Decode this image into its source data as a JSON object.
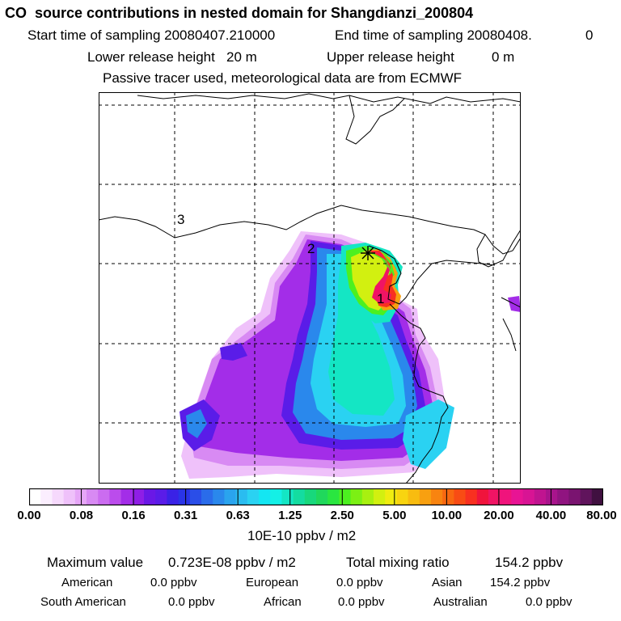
{
  "title": "CO  source contributions in nested domain for Shangdianzi_200804",
  "header": {
    "start_label": "Start time of sampling 20080407.210000",
    "end_label": "End time of sampling 20080408.",
    "end_value": "0",
    "lower_label": "Lower release height   20 m",
    "upper_label": "Upper release height",
    "upper_value": "0 m",
    "note": "Passive tracer used, meteorological data are from ECMWF"
  },
  "map": {
    "region_labels": [
      "1",
      "2",
      "3"
    ],
    "grid": true,
    "station_marker": "asterisk"
  },
  "chart_data": {
    "type": "heatmap",
    "title": "CO  source contributions in nested domain for Shangdianzi_200804",
    "colorbar_label": "10E-10 ppbv / m2",
    "colorbar_ticks": [
      "0.00",
      "0.08",
      "0.16",
      "0.31",
      "0.63",
      "1.25",
      "2.50",
      "5.00",
      "10.00",
      "20.00",
      "40.00",
      "80.00"
    ],
    "colors": [
      "#ffffff",
      "#fbeefe",
      "#f6d9fc",
      "#efc1fa",
      "#e6a6f7",
      "#d88af3",
      "#cb6cf0",
      "#bb4cec",
      "#a32de8",
      "#8f1ee6",
      "#6a18e6",
      "#5a1ce8",
      "#3a22e6",
      "#2a34e8",
      "#2a4ee8",
      "#2a6cea",
      "#2a88ec",
      "#2aa4ee",
      "#2abcf0",
      "#2ad2f2",
      "#14e6f2",
      "#14f0e6",
      "#14e6c4",
      "#14dca0",
      "#18d87c",
      "#20d85c",
      "#2ae640",
      "#4cf020",
      "#7cf014",
      "#a8f010",
      "#d2f010",
      "#f0ec10",
      "#f8d410",
      "#f8bc10",
      "#f8a010",
      "#f88410",
      "#f86810",
      "#f84c14",
      "#f83020",
      "#f0143c",
      "#f01464",
      "#f0147c",
      "#e81494",
      "#d81494",
      "#c01490",
      "#a8148c",
      "#901480",
      "#7a1470",
      "#60145c",
      "#401040"
    ]
  },
  "footer": {
    "max_label": "Maximum value",
    "max_value": "0.723E-08 ppbv / m2",
    "total_label": "Total mixing ratio",
    "total_value": "154.2 ppbv",
    "contributions": [
      {
        "name": "American",
        "value": "0.0 ppbv"
      },
      {
        "name": "European",
        "value": "0.0 ppbv"
      },
      {
        "name": "Asian",
        "value": "154.2 ppbv"
      },
      {
        "name": "South American",
        "value": "0.0 ppbv"
      },
      {
        "name": "African",
        "value": "0.0 ppbv"
      },
      {
        "name": "Australian",
        "value": "0.0 ppbv"
      }
    ]
  }
}
